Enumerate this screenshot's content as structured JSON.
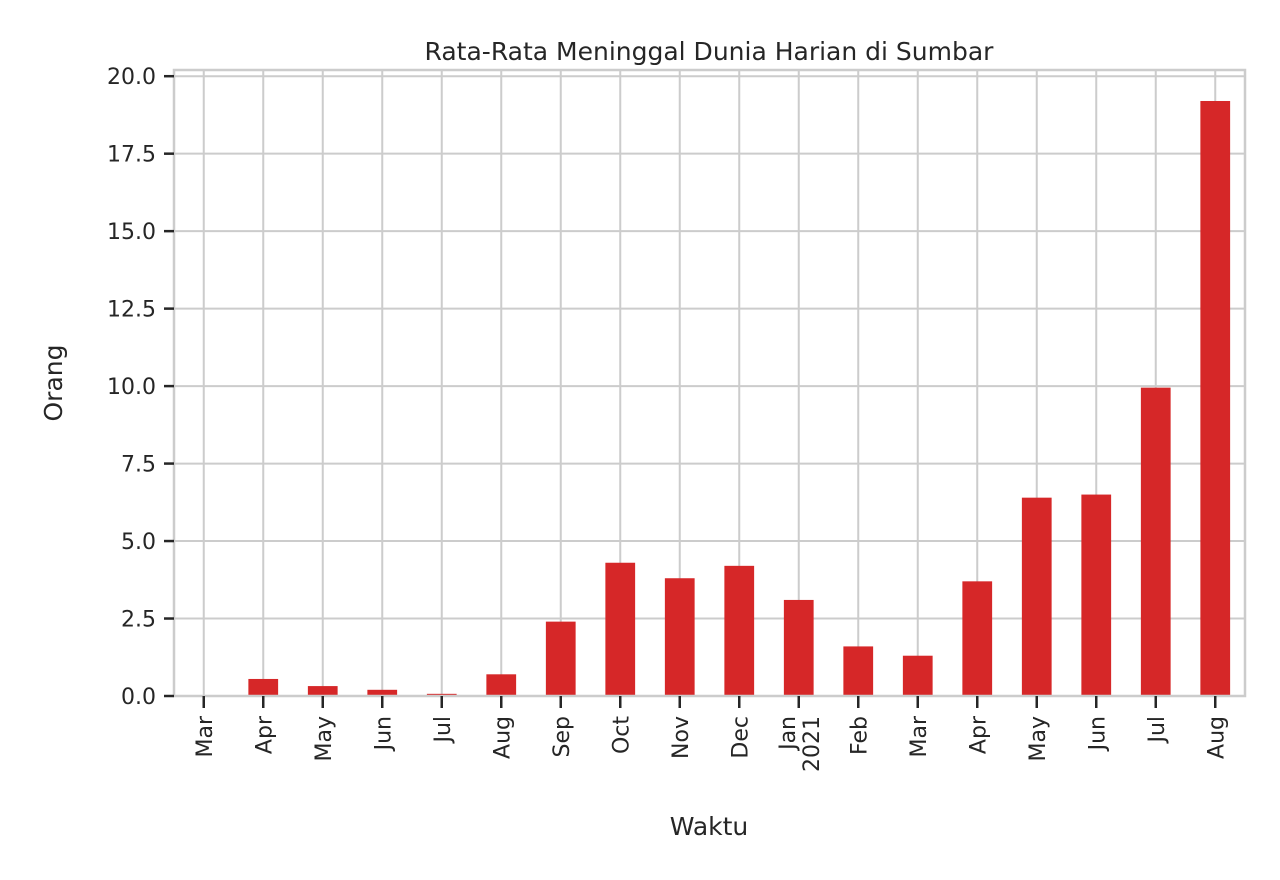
{
  "chart_data": {
    "type": "bar",
    "title": "Rata-Rata Meninggal Dunia Harian di Sumbar",
    "xlabel": "Waktu",
    "ylabel": "Orang",
    "categories": [
      [
        "Mar"
      ],
      [
        "Apr"
      ],
      [
        "May"
      ],
      [
        "Jun"
      ],
      [
        "Jul"
      ],
      [
        "Aug"
      ],
      [
        "Sep"
      ],
      [
        "Oct"
      ],
      [
        "Nov"
      ],
      [
        "Dec"
      ],
      [
        "Jan",
        "2021"
      ],
      [
        "Feb"
      ],
      [
        "Mar"
      ],
      [
        "Apr"
      ],
      [
        "May"
      ],
      [
        "Jun"
      ],
      [
        "Jul"
      ],
      [
        "Aug"
      ]
    ],
    "values": [
      0.0,
      0.55,
      0.32,
      0.2,
      0.07,
      0.7,
      2.4,
      4.3,
      3.8,
      4.2,
      3.1,
      1.6,
      1.3,
      3.7,
      6.4,
      6.5,
      9.95,
      19.2
    ],
    "ylim": [
      0,
      20.2
    ],
    "yticks": [
      "0.0",
      "2.5",
      "5.0",
      "7.5",
      "10.0",
      "12.5",
      "15.0",
      "17.5",
      "20.0"
    ],
    "grid": true,
    "bar_color": "#d62728"
  }
}
